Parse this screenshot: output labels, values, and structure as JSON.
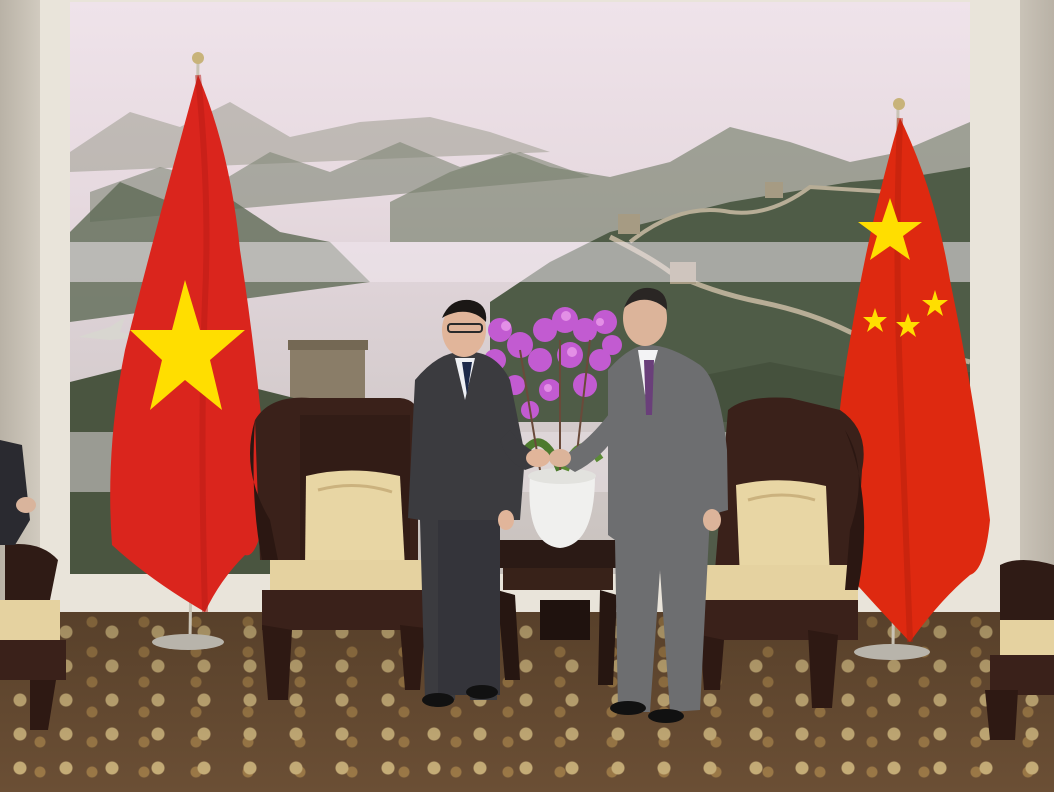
{
  "scene": {
    "description_colors": {
      "vietnam_flag_red": "#da251d",
      "vietnam_star": "#ffde00",
      "china_flag_red": "#de2910",
      "china_star": "#ffde00",
      "suit_dark": "#3b3b3f",
      "suit_grey": "#6d6e70",
      "wood": "#3a211a",
      "cushion": "#e8d6a4",
      "orchid": "#c25bd1"
    },
    "icons": [
      "vietnam-flag",
      "china-flag",
      "great-wall-mural",
      "orchid-plant",
      "chair",
      "tea-table"
    ]
  }
}
